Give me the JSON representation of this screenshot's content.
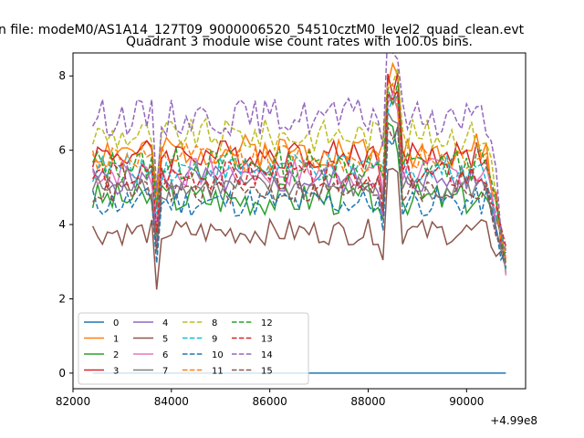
{
  "header": {
    "file_title": "n file: modeM0/AS1A14_127T09_9000006520_54510cztM0_level2_quad_clean.evt"
  },
  "chart_data": {
    "type": "line",
    "title": "Quadrant 3 module wise count rates with 100.0s bins.",
    "xlabel": "",
    "ylabel": "",
    "x_offset_label": "+4.99e8",
    "xlim": [
      82000,
      91200
    ],
    "ylim": [
      -0.42,
      8.62
    ],
    "x_start": 82400,
    "x_end": 90800,
    "x_step": 100,
    "x_ticks": [
      82000,
      84000,
      86000,
      88000,
      90000
    ],
    "x_tick_labels": [
      "82000",
      "84000",
      "86000",
      "88000",
      "90000"
    ],
    "y_ticks": [
      0,
      2,
      4,
      6,
      8
    ],
    "y_tick_labels": [
      "0",
      "2",
      "4",
      "6",
      "8"
    ],
    "legend": {
      "position": "lower-left",
      "columns": 4
    },
    "series": [
      {
        "name": "0",
        "color": "#1f77b4",
        "dashed": false,
        "base": 0.0,
        "amp": 0.0,
        "seed": 1
      },
      {
        "name": "1",
        "color": "#ff7f0e",
        "dashed": false,
        "base": 6.0,
        "amp": 0.45,
        "seed": 2
      },
      {
        "name": "2",
        "color": "#2ca02c",
        "dashed": false,
        "base": 4.7,
        "amp": 0.45,
        "seed": 3
      },
      {
        "name": "3",
        "color": "#d62728",
        "dashed": false,
        "base": 5.9,
        "amp": 0.4,
        "seed": 4
      },
      {
        "name": "4",
        "color": "#9467bd",
        "dashed": false,
        "base": 5.2,
        "amp": 0.4,
        "seed": 5
      },
      {
        "name": "5",
        "color": "#8c564b",
        "dashed": false,
        "base": 3.8,
        "amp": 0.35,
        "seed": 6
      },
      {
        "name": "6",
        "color": "#e377c2",
        "dashed": false,
        "base": 5.4,
        "amp": 0.4,
        "seed": 7
      },
      {
        "name": "7",
        "color": "#7f7f7f",
        "dashed": false,
        "base": 5.0,
        "amp": 0.35,
        "seed": 8
      },
      {
        "name": "8",
        "color": "#bcbd22",
        "dashed": true,
        "base": 6.4,
        "amp": 0.45,
        "seed": 9
      },
      {
        "name": "9",
        "color": "#17becf",
        "dashed": true,
        "base": 5.5,
        "amp": 0.4,
        "seed": 10
      },
      {
        "name": "10",
        "color": "#1f77b4",
        "dashed": true,
        "base": 4.6,
        "amp": 0.4,
        "seed": 11
      },
      {
        "name": "11",
        "color": "#ff7f0e",
        "dashed": true,
        "base": 5.8,
        "amp": 0.4,
        "seed": 12
      },
      {
        "name": "12",
        "color": "#2ca02c",
        "dashed": true,
        "base": 5.6,
        "amp": 0.45,
        "seed": 13
      },
      {
        "name": "13",
        "color": "#d62728",
        "dashed": true,
        "base": 5.3,
        "amp": 0.4,
        "seed": 14
      },
      {
        "name": "14",
        "color": "#9467bd",
        "dashed": true,
        "base": 6.9,
        "amp": 0.5,
        "seed": 15
      },
      {
        "name": "15",
        "color": "#8c564b",
        "dashed": true,
        "base": 4.9,
        "amp": 0.35,
        "seed": 16
      }
    ]
  }
}
